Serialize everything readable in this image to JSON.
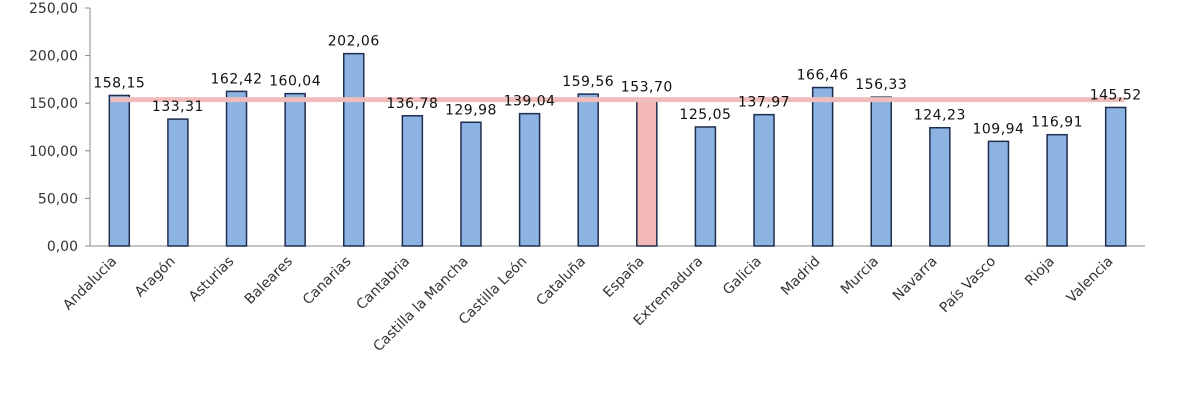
{
  "chart_data": {
    "type": "bar",
    "categories": [
      "Andalucia",
      "Aragón",
      "Asturias",
      "Baleares",
      "Canarias",
      "Cantabria",
      "Castilla la Mancha",
      "Castilla León",
      "Cataluña",
      "España",
      "Extremadura",
      "Galicia",
      "Madrid",
      "Murcia",
      "Navarra",
      "País Vasco",
      "Rioja",
      "Valencia"
    ],
    "values": [
      158.15,
      133.31,
      162.42,
      160.04,
      202.06,
      136.78,
      129.98,
      139.04,
      159.56,
      153.7,
      125.05,
      137.97,
      166.46,
      156.33,
      124.23,
      109.94,
      116.91,
      145.52
    ],
    "value_labels": [
      "158,15",
      "133,31",
      "162,42",
      "160,04",
      "202,06",
      "136,78",
      "129,98",
      "139,04",
      "159,56",
      "153,70",
      "125,05",
      "137,97",
      "166,46",
      "156,33",
      "124,23",
      "109,94",
      "116,91",
      "145,52"
    ],
    "colors": [
      "#8db3e2",
      "#8db3e2",
      "#8db3e2",
      "#8db3e2",
      "#8db3e2",
      "#8db3e2",
      "#8db3e2",
      "#8db3e2",
      "#8db3e2",
      "#f2b8b8",
      "#8db3e2",
      "#8db3e2",
      "#8db3e2",
      "#8db3e2",
      "#8db3e2",
      "#8db3e2",
      "#8db3e2",
      "#8db3e2"
    ],
    "reference_line": {
      "category": "España",
      "color": "#f0bcbc"
    },
    "ylim": [
      0,
      250
    ],
    "yticks": [
      {
        "value": 0,
        "label": "0,00"
      },
      {
        "value": 50,
        "label": "50,00"
      },
      {
        "value": 100,
        "label": "100,00"
      },
      {
        "value": 150,
        "label": "150,00"
      },
      {
        "value": 200,
        "label": "200,00"
      },
      {
        "value": 250,
        "label": "250,00"
      }
    ],
    "grid": false
  }
}
